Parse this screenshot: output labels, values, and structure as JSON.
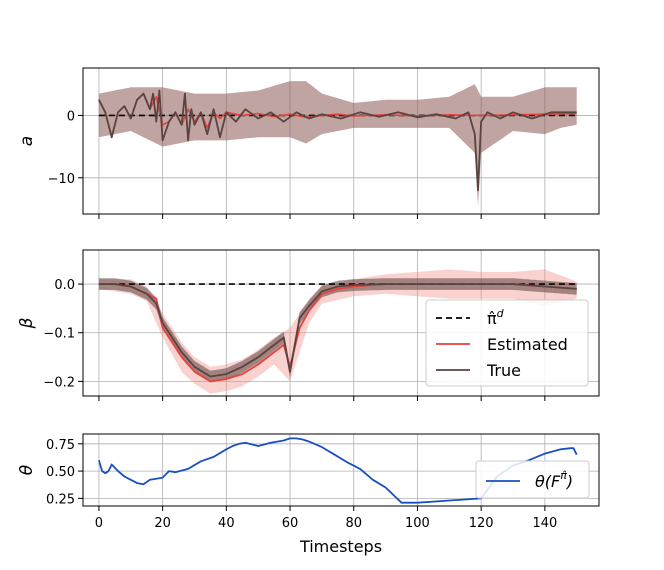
{
  "chart_data": [
    {
      "type": "line",
      "panel": "a",
      "ylabel": "a",
      "xlim": [
        -5,
        157
      ],
      "ylim": [
        -15.8,
        7.6
      ],
      "yticks": [
        0,
        -10
      ],
      "ytick_labels": [
        "0",
        "−10"
      ],
      "xticks": [
        0,
        20,
        40,
        60,
        80,
        100,
        120,
        140
      ],
      "grid": true,
      "band_color": "#8c5a56",
      "series": [
        {
          "name": "pi_d",
          "style": "dashed",
          "color": "#000000",
          "x": [
            0,
            150
          ],
          "values": [
            0,
            0
          ]
        },
        {
          "name": "Estimated",
          "color": "#e8413c",
          "x": [
            0,
            2,
            4,
            6,
            8,
            10,
            12,
            14,
            16,
            18,
            20,
            22,
            24,
            26,
            28,
            30,
            32,
            34,
            36,
            38,
            40,
            45,
            50,
            55,
            60,
            65,
            70,
            75,
            80,
            90,
            100,
            110,
            120,
            130,
            140,
            150
          ],
          "values": [
            2.5,
            0.5,
            -3.5,
            0.5,
            1.5,
            -0.5,
            2.5,
            3.5,
            1,
            3,
            -1.5,
            -1,
            0.5,
            -1.5,
            1,
            -1,
            0.5,
            -2,
            0.5,
            -0.5,
            0.5,
            0,
            0.3,
            -0.2,
            0.2,
            -0.3,
            0,
            0.2,
            -0.1,
            0.1,
            -0.1,
            0.1,
            0,
            0.1,
            0.2,
            0.3
          ]
        },
        {
          "name": "True",
          "color": "#5b4340",
          "x": [
            0,
            2,
            4,
            6,
            8,
            10,
            12,
            14,
            16,
            17,
            18,
            19,
            20,
            22,
            24,
            26,
            27,
            28,
            29,
            30,
            32,
            34,
            36,
            38,
            40,
            43,
            46,
            50,
            54,
            58,
            62,
            66,
            70,
            76,
            82,
            88,
            94,
            100,
            106,
            112,
            116,
            118,
            119,
            120,
            122,
            126,
            130,
            136,
            142,
            146,
            150
          ],
          "values": [
            2.5,
            0.5,
            -3.5,
            0.5,
            1.5,
            -0.5,
            2.5,
            3.5,
            1,
            3.5,
            -1,
            4,
            -4,
            -1,
            0.5,
            -1.5,
            3.5,
            -4,
            1,
            -1.5,
            0.5,
            -3,
            1,
            -3.5,
            0.5,
            -1,
            1,
            -0.5,
            0.5,
            -1,
            0.5,
            -0.5,
            0.2,
            -0.5,
            0.5,
            -0.2,
            0.5,
            -0.3,
            0.2,
            -0.5,
            0.5,
            -3,
            -12,
            -1,
            0.5,
            -0.5,
            0.5,
            -0.5,
            0.5,
            0.5,
            0.5
          ]
        },
        {
          "name": "True_band_upper",
          "x": [
            0,
            10,
            20,
            30,
            40,
            50,
            60,
            65,
            70,
            80,
            90,
            100,
            110,
            118,
            120,
            130,
            140,
            145,
            150
          ],
          "values": [
            3.5,
            4.5,
            4.5,
            3.5,
            3.5,
            4,
            5.5,
            5.5,
            3.5,
            2,
            2.5,
            2.5,
            3,
            5,
            3,
            3,
            4.5,
            4.5,
            4.5
          ]
        },
        {
          "name": "True_band_lower",
          "x": [
            0,
            10,
            20,
            30,
            40,
            50,
            60,
            65,
            70,
            80,
            90,
            100,
            110,
            118,
            119,
            120,
            130,
            140,
            145,
            150
          ],
          "values": [
            -3.5,
            -2.5,
            -5,
            -4,
            -4,
            -3.5,
            -3.5,
            -4.5,
            -3,
            -2,
            -2,
            -2,
            -2,
            -6,
            -14.5,
            -6,
            -2.5,
            -3,
            -2,
            -1.5
          ]
        }
      ]
    },
    {
      "type": "line",
      "panel": "beta",
      "ylabel": "β",
      "xlim": [
        -5,
        157
      ],
      "ylim": [
        -0.23,
        0.07
      ],
      "yticks": [
        0.0,
        -0.1,
        -0.2
      ],
      "ytick_labels": [
        "0.0",
        "−0.1",
        "−0.2"
      ],
      "xticks": [
        0,
        20,
        40,
        60,
        80,
        100,
        120,
        140
      ],
      "grid": true,
      "legend": {
        "placement": "lower-right",
        "entries": [
          {
            "label": "π̂",
            "sup": "d",
            "style": "dashed",
            "color": "#000000"
          },
          {
            "label": "Estimated",
            "color": "#e8413c"
          },
          {
            "label": "True",
            "color": "#5b4340"
          }
        ]
      },
      "series": [
        {
          "name": "pi_d",
          "style": "dashed",
          "color": "#000000",
          "x": [
            0,
            150
          ],
          "values": [
            0,
            0
          ]
        },
        {
          "name": "Estimated",
          "color": "#e8413c",
          "x": [
            0,
            5,
            10,
            15,
            18,
            20,
            23,
            26,
            30,
            35,
            40,
            45,
            50,
            55,
            58,
            60,
            63,
            66,
            70,
            75,
            80,
            90,
            100,
            110,
            120,
            130,
            140,
            150
          ],
          "values": [
            0,
            0,
            -0.005,
            -0.02,
            -0.03,
            -0.09,
            -0.12,
            -0.15,
            -0.18,
            -0.2,
            -0.195,
            -0.185,
            -0.165,
            -0.14,
            -0.125,
            -0.17,
            -0.09,
            -0.055,
            -0.02,
            -0.01,
            -0.005,
            0,
            0,
            0,
            0,
            0,
            -0.005,
            -0.01
          ]
        },
        {
          "name": "True",
          "color": "#5b4340",
          "x": [
            0,
            5,
            10,
            15,
            18,
            20,
            23,
            26,
            30,
            35,
            40,
            45,
            50,
            55,
            58,
            60,
            63,
            66,
            70,
            75,
            80,
            90,
            100,
            110,
            120,
            130,
            140,
            150
          ],
          "values": [
            0,
            0,
            -0.005,
            -0.02,
            -0.04,
            -0.08,
            -0.11,
            -0.14,
            -0.17,
            -0.19,
            -0.185,
            -0.17,
            -0.15,
            -0.125,
            -0.11,
            -0.18,
            -0.07,
            -0.045,
            -0.015,
            -0.005,
            -0.002,
            0,
            0,
            0,
            0,
            0,
            -0.005,
            -0.01
          ]
        },
        {
          "name": "Estimated_band_upper",
          "x": [
            0,
            10,
            15,
            20,
            26,
            30,
            35,
            40,
            45,
            50,
            55,
            60,
            66,
            70,
            80,
            90,
            100,
            110,
            120,
            130,
            140,
            150
          ],
          "values": [
            0.01,
            0.01,
            -0.005,
            -0.06,
            -0.12,
            -0.15,
            -0.17,
            -0.165,
            -0.155,
            -0.135,
            -0.11,
            -0.09,
            -0.03,
            -0.005,
            0.01,
            0.02,
            0.025,
            0.03,
            0.025,
            0.025,
            0.03,
            0.005
          ]
        },
        {
          "name": "Estimated_band_lower",
          "x": [
            0,
            10,
            15,
            20,
            26,
            30,
            35,
            40,
            45,
            50,
            55,
            60,
            66,
            70,
            80,
            90,
            100,
            110,
            120,
            130,
            140,
            150
          ],
          "values": [
            -0.01,
            -0.02,
            -0.035,
            -0.11,
            -0.18,
            -0.205,
            -0.225,
            -0.22,
            -0.21,
            -0.19,
            -0.165,
            -0.2,
            -0.08,
            -0.04,
            -0.025,
            -0.02,
            -0.025,
            -0.03,
            -0.03,
            -0.03,
            -0.045,
            -0.03
          ]
        }
      ]
    },
    {
      "type": "line",
      "panel": "theta",
      "ylabel": "θ",
      "xlabel": "Timesteps",
      "xlim": [
        -5,
        157
      ],
      "ylim": [
        0.18,
        0.84
      ],
      "yticks": [
        0.25,
        0.5,
        0.75
      ],
      "ytick_labels": [
        "0.25",
        "0.50",
        "0.75"
      ],
      "xticks": [
        0,
        20,
        40,
        60,
        80,
        100,
        120,
        140
      ],
      "xtick_labels": [
        "0",
        "20",
        "40",
        "60",
        "80",
        "100",
        "120",
        "140"
      ],
      "grid": true,
      "legend": {
        "placement": "right",
        "entries": [
          {
            "label": "θ(F",
            "sup": "π̂",
            "suffix": ")",
            "color": "#1a4fc4"
          }
        ]
      },
      "series": [
        {
          "name": "theta",
          "color": "#1a4fc4",
          "x": [
            0,
            1,
            2,
            3,
            4,
            6,
            8,
            10,
            12,
            14,
            16,
            18,
            20,
            22,
            24,
            28,
            32,
            36,
            40,
            42,
            44,
            46,
            50,
            54,
            58,
            60,
            62,
            64,
            66,
            70,
            74,
            78,
            82,
            86,
            90,
            95,
            100,
            105,
            110,
            115,
            120,
            125,
            130,
            135,
            140,
            145,
            148,
            149,
            150
          ],
          "values": [
            0.6,
            0.5,
            0.48,
            0.5,
            0.56,
            0.5,
            0.45,
            0.42,
            0.39,
            0.38,
            0.42,
            0.43,
            0.44,
            0.5,
            0.49,
            0.52,
            0.59,
            0.63,
            0.7,
            0.73,
            0.75,
            0.76,
            0.73,
            0.76,
            0.78,
            0.8,
            0.8,
            0.79,
            0.77,
            0.72,
            0.65,
            0.58,
            0.52,
            0.42,
            0.35,
            0.21,
            0.21,
            0.22,
            0.23,
            0.24,
            0.25,
            0.45,
            0.55,
            0.6,
            0.66,
            0.7,
            0.71,
            0.71,
            0.65
          ]
        }
      ]
    }
  ]
}
